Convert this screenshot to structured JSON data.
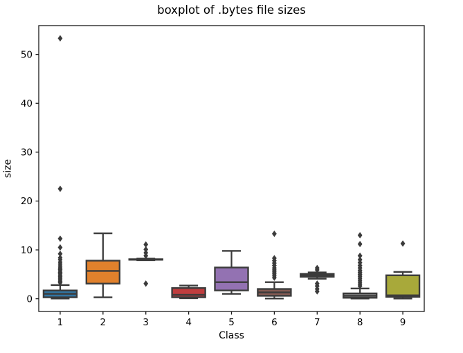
{
  "figure": {
    "background": "#ffffff"
  },
  "chart_data": {
    "type": "boxplot",
    "title": "boxplot of .bytes file sizes",
    "xlabel": "Class",
    "ylabel": "size",
    "categories": [
      "1",
      "2",
      "3",
      "4",
      "5",
      "6",
      "7",
      "8",
      "9"
    ],
    "yticks": [
      0,
      10,
      20,
      30,
      40,
      50
    ],
    "ylim": [
      -2.6,
      55.9
    ],
    "grid": false,
    "legend": null,
    "line_color": "#3b3b3b",
    "spine_color": "#1a1a1a",
    "boxes": [
      {
        "category": "1",
        "color": "#3274a1",
        "whislo": 0.05,
        "q1": 0.3,
        "med": 1.0,
        "q3": 1.7,
        "whishi": 2.8,
        "fliers": [
          3.3,
          3.6,
          3.9,
          4.2,
          4.5,
          4.8,
          5.1,
          5.4,
          5.7,
          6.0,
          6.3,
          6.7,
          7.1,
          7.5,
          8.0,
          8.4,
          9.2,
          10.5,
          12.3,
          22.5,
          53.3
        ]
      },
      {
        "category": "2",
        "color": "#e1812c",
        "whislo": 0.3,
        "q1": 3.1,
        "med": 5.7,
        "q3": 7.8,
        "whishi": 13.4,
        "fliers": []
      },
      {
        "category": "3",
        "color": "#3a923a",
        "whislo": 7.9,
        "q1": 8.0,
        "med": 8.0,
        "q3": 8.1,
        "whishi": 8.2,
        "fliers": [
          3.1,
          8.8,
          9.4,
          10.1,
          11.1
        ]
      },
      {
        "category": "4",
        "color": "#c03d3e",
        "whislo": 0.1,
        "q1": 0.3,
        "med": 0.8,
        "q3": 2.2,
        "whishi": 2.7,
        "fliers": []
      },
      {
        "category": "5",
        "color": "#9372b2",
        "whislo": 1.0,
        "q1": 1.7,
        "med": 3.4,
        "q3": 6.4,
        "whishi": 9.8,
        "fliers": []
      },
      {
        "category": "6",
        "color": "#845b53",
        "whislo": 0.05,
        "q1": 0.6,
        "med": 1.3,
        "q3": 2.0,
        "whishi": 3.4,
        "fliers": [
          4.3,
          4.7,
          5.1,
          5.5,
          5.9,
          6.3,
          6.8,
          7.3,
          7.8,
          8.3,
          13.3
        ]
      },
      {
        "category": "7",
        "color": "#d684bd",
        "whislo": 4.1,
        "q1": 4.5,
        "med": 4.8,
        "q3": 5.1,
        "whishi": 5.4,
        "fliers": [
          1.5,
          2.0,
          2.6,
          3.1,
          5.9,
          6.3
        ]
      },
      {
        "category": "8",
        "color": "#7f7f7f",
        "whislo": 0.05,
        "q1": 0.2,
        "med": 0.6,
        "q3": 1.1,
        "whishi": 2.1,
        "fliers": [
          2.6,
          3.0,
          3.4,
          3.8,
          4.2,
          4.6,
          5.0,
          5.4,
          5.8,
          6.3,
          6.8,
          7.4,
          8.0,
          8.8,
          11.2,
          13.0
        ]
      },
      {
        "category": "9",
        "color": "#a8a93a",
        "whislo": 0.05,
        "q1": 0.4,
        "med": 0.7,
        "q3": 4.8,
        "whishi": 5.5,
        "fliers": [
          11.3
        ]
      }
    ]
  }
}
